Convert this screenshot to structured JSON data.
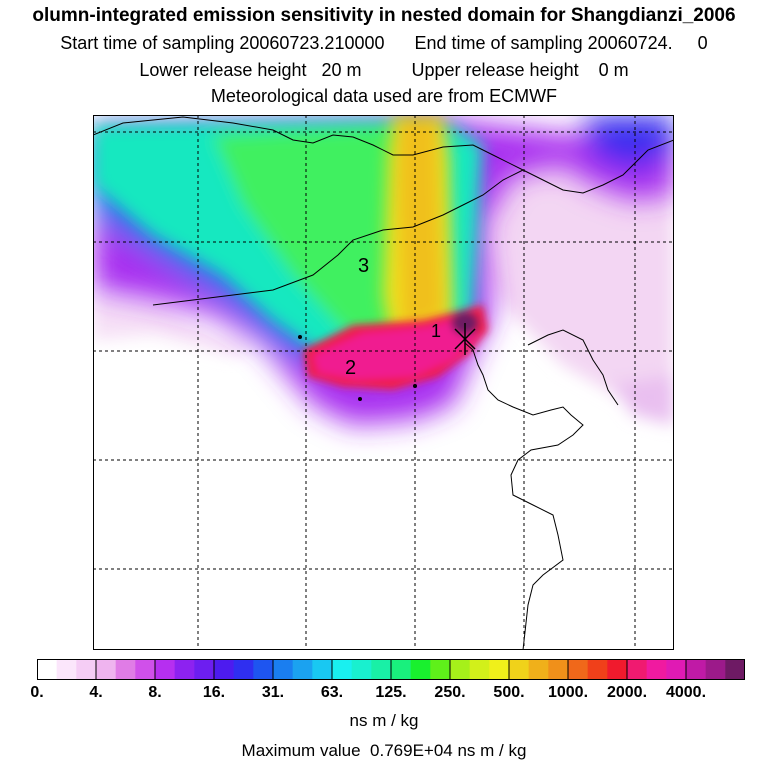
{
  "header": {
    "title": "olumn-integrated emission sensitivity in nested domain for Shangdianzi_2006",
    "line2": "Start time of sampling 20060723.210000      End time of sampling 20060724.     0",
    "line3": "Lower release height   20 m          Upper release height    0 m",
    "line4": "Meteorological data used are from ECMWF"
  },
  "map": {
    "labels": [
      "1",
      "2",
      "3"
    ],
    "gridlines": "dashed"
  },
  "colorbar": {
    "ticks": [
      "0.",
      "4.",
      "8.",
      "16.",
      "31.",
      "63.",
      "125.",
      "250.",
      "500.",
      "1000.",
      "2000.",
      "4000."
    ],
    "unit": "ns m / kg",
    "colors": [
      "#ffffff",
      "#fbe6fb",
      "#f5cdf5",
      "#efb4ef",
      "#e07ce6",
      "#d050ea",
      "#b62ff0",
      "#8d22f0",
      "#6d1ef0",
      "#4d1bef",
      "#2f2ff0",
      "#1e55f0",
      "#1a7ef0",
      "#1ba2f0",
      "#19c8f2",
      "#19f0f0",
      "#19f0cf",
      "#19f0a6",
      "#19f07d",
      "#19f02e",
      "#5ff01a",
      "#a6f01a",
      "#d2f01a",
      "#f0f01a",
      "#f0d21a",
      "#f0b01a",
      "#f0901a",
      "#f0681a",
      "#f0401a",
      "#f01a2d",
      "#f01a70",
      "#f01aa0",
      "#e01ab4",
      "#c01aa6",
      "#9c1a8a",
      "#6e1a64"
    ]
  },
  "max_value_text": "Maximum value  0.769E+04 ns m / kg"
}
